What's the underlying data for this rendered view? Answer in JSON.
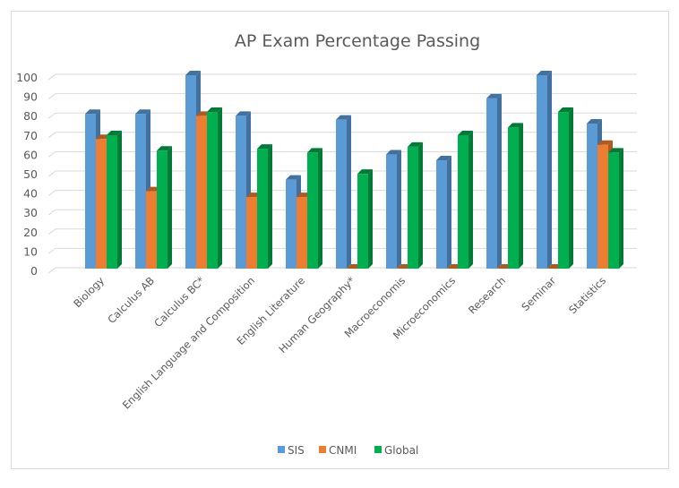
{
  "chart_data": {
    "type": "bar",
    "title": "AP Exam Percentage Passing",
    "xlabel": "",
    "ylabel": "",
    "ylim": [
      0,
      100
    ],
    "yticks": [
      "0",
      "10",
      "20",
      "30",
      "40",
      "50",
      "60",
      "70",
      "80",
      "90",
      "100"
    ],
    "grid": true,
    "legend_position": "bottom",
    "categories": [
      "Biology",
      "Calculus AB",
      "Calculus BC*",
      "English Language and Composition",
      "English Literature",
      "Human Geography*",
      "Macroeconomis",
      "Microeconomics",
      "Research",
      "Seminar",
      "Statistics"
    ],
    "series": [
      {
        "name": "SIS",
        "color": "#5b9bd5",
        "side_color": "#41719c",
        "values": [
          80,
          80,
          100,
          79,
          46,
          77,
          59,
          56,
          88,
          100,
          75
        ]
      },
      {
        "name": "CNMI",
        "color": "#ed7d31",
        "side_color": "#ae5a21",
        "values": [
          67,
          40,
          79,
          37,
          37,
          0,
          0,
          0,
          0,
          0,
          64
        ]
      },
      {
        "name": "Global",
        "color": "#00b050",
        "side_color": "#007a37",
        "values": [
          69,
          61,
          81,
          62,
          60,
          49,
          63,
          69,
          73,
          81,
          60
        ]
      }
    ]
  }
}
